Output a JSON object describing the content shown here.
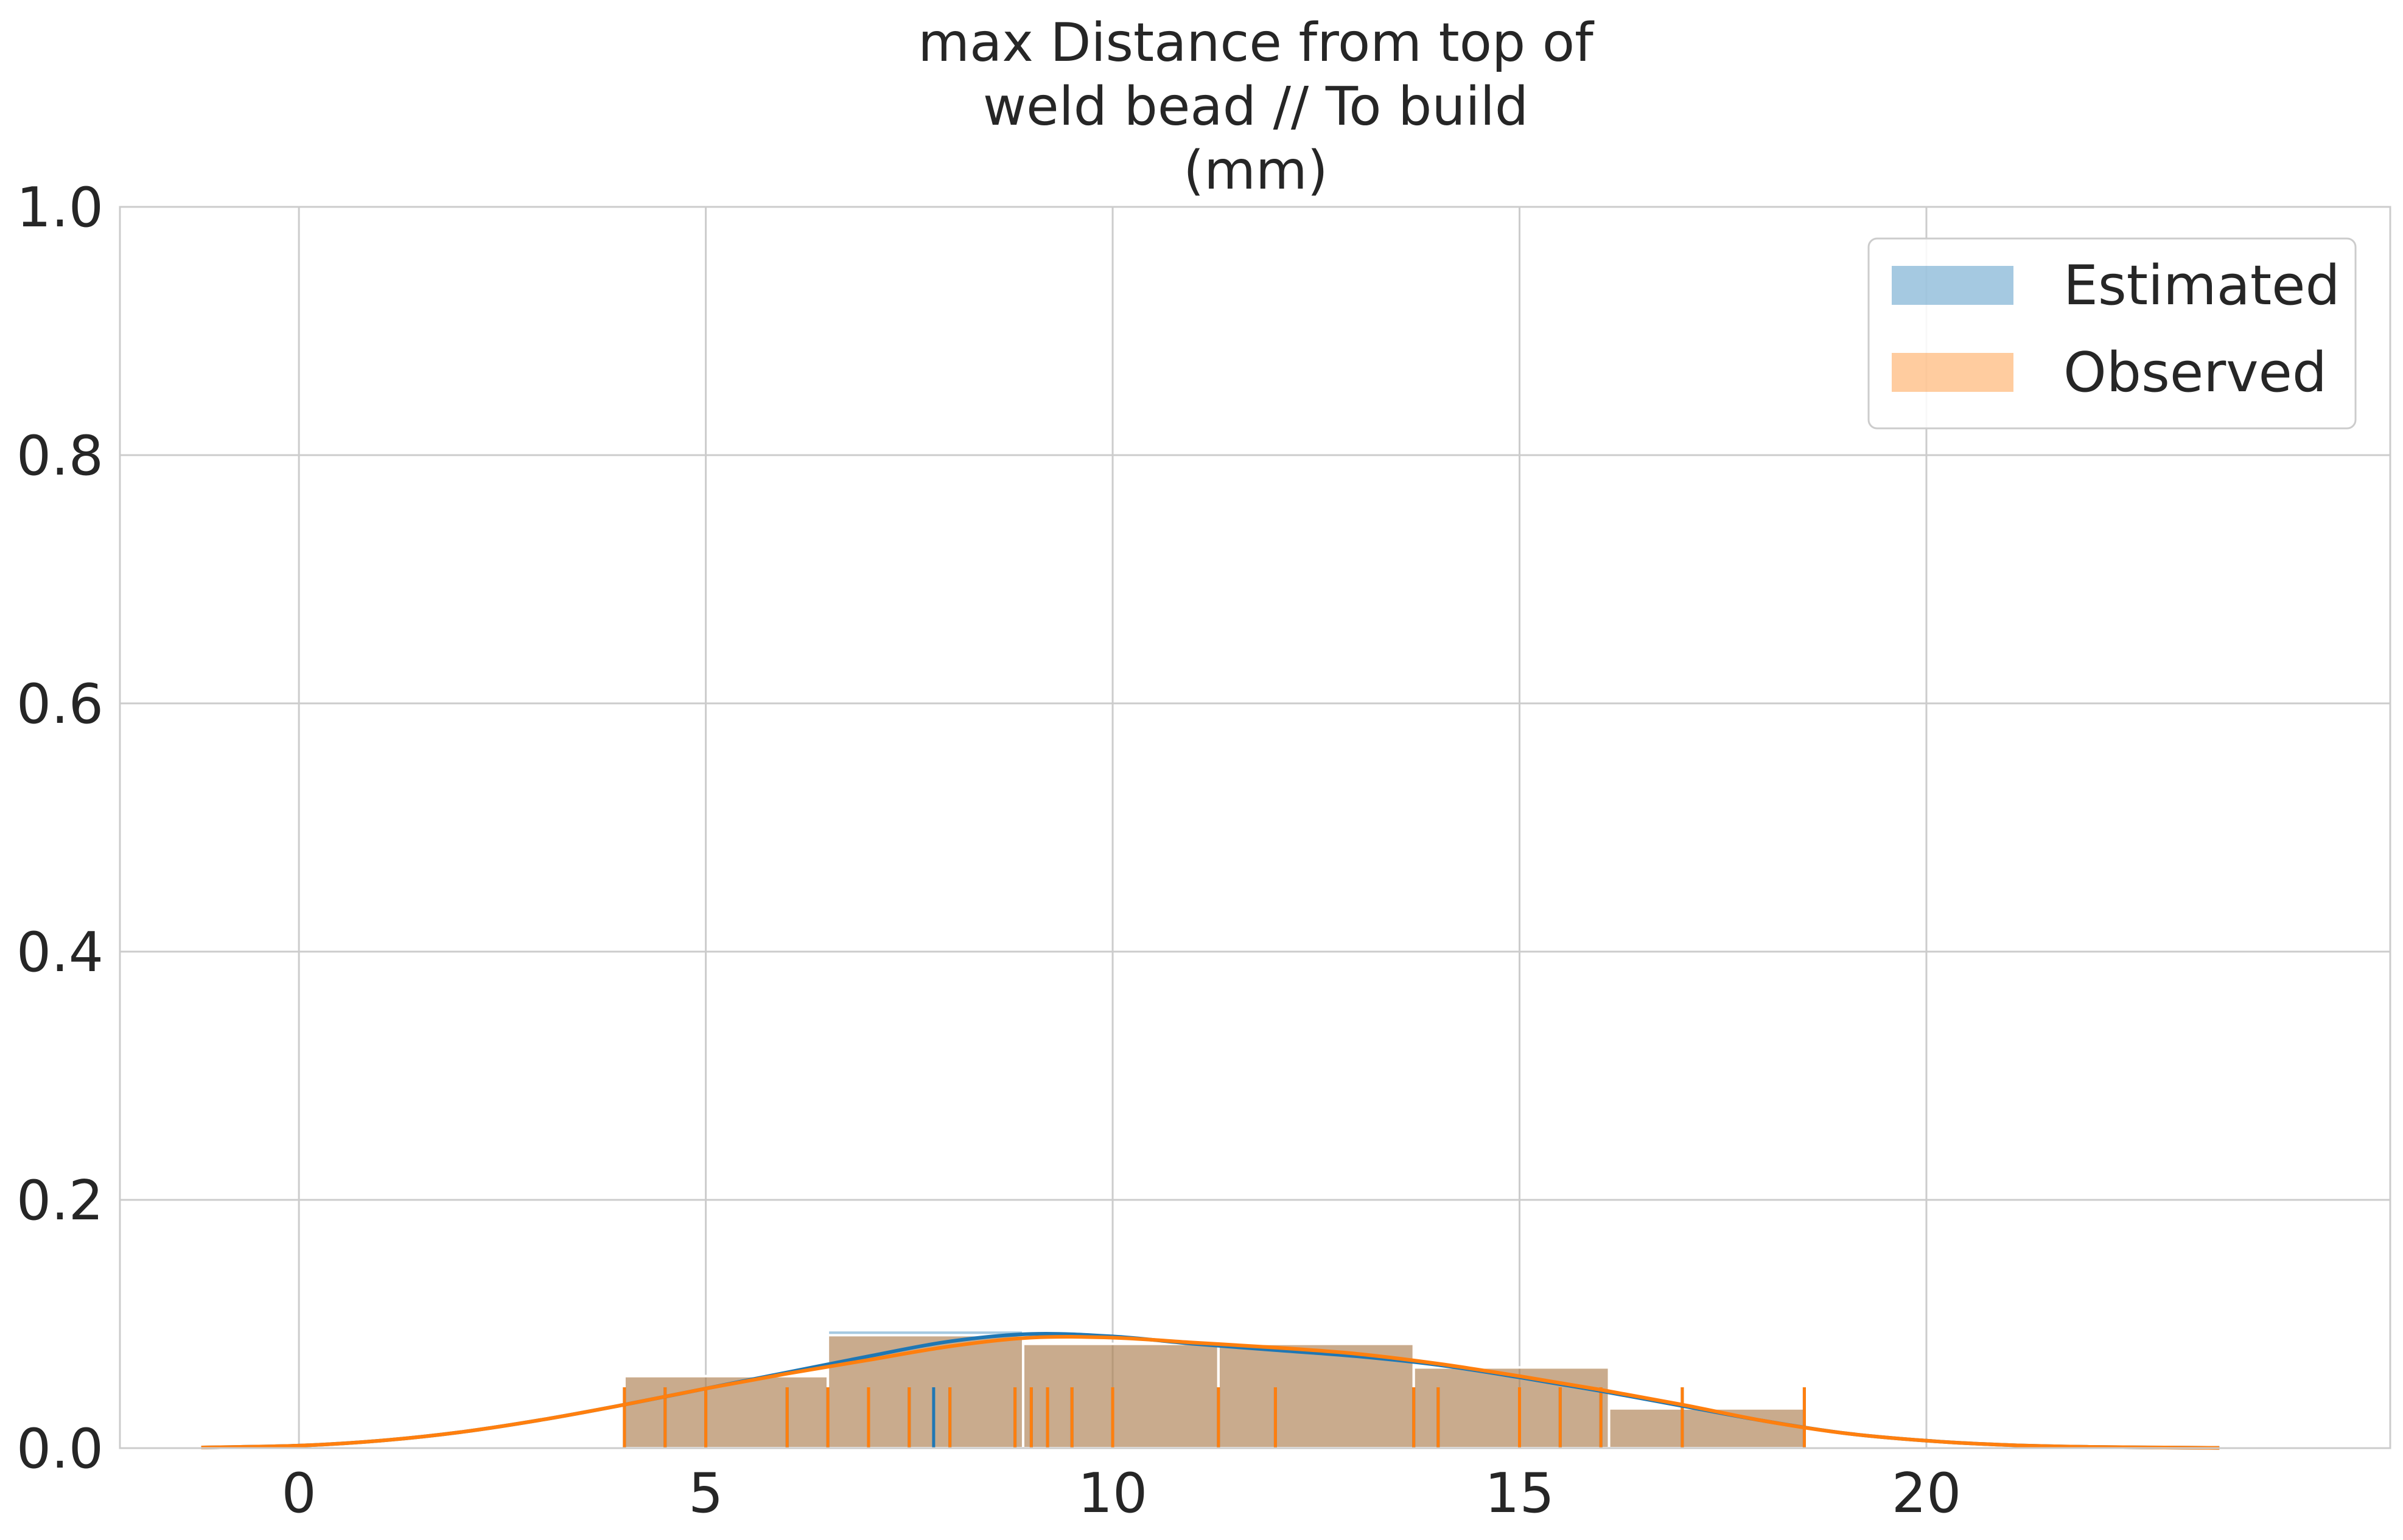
{
  "chart_data": {
    "type": "bar",
    "title_lines": [
      "max Distance from top of",
      "weld bead // To build",
      "(mm)"
    ],
    "xlabel": "",
    "ylabel": "",
    "xlim": [
      -2.2,
      25.7
    ],
    "ylim": [
      0,
      1.0
    ],
    "x_ticks": [
      0,
      5,
      10,
      15,
      20
    ],
    "y_ticks": [
      0.0,
      0.2,
      0.4,
      0.6,
      0.8,
      1.0
    ],
    "x_tick_labels": [
      "0",
      "5",
      "10",
      "15",
      "20"
    ],
    "y_tick_labels": [
      "0.0",
      "0.2",
      "0.4",
      "0.6",
      "0.8",
      "1.0"
    ],
    "grid": true,
    "legend_position": "top-right",
    "series": [
      {
        "name": "Estimated",
        "color": "#1f77b4",
        "bins": [
          [
            4.0,
            6.5,
            0.058
          ],
          [
            6.5,
            8.9,
            0.095
          ],
          [
            8.9,
            11.3,
            0.084
          ],
          [
            11.3,
            13.7,
            0.084
          ],
          [
            13.7,
            16.1,
            0.065
          ],
          [
            16.1,
            18.5,
            0.032
          ]
        ],
        "kde": [
          [
            -1.2,
            0.0005
          ],
          [
            0,
            0.002
          ],
          [
            1,
            0.006
          ],
          [
            2,
            0.013
          ],
          [
            3,
            0.023
          ],
          [
            4,
            0.035
          ],
          [
            5,
            0.048
          ],
          [
            6,
            0.061
          ],
          [
            7,
            0.074
          ],
          [
            8,
            0.086
          ],
          [
            9,
            0.092
          ],
          [
            10,
            0.09
          ],
          [
            11,
            0.084
          ],
          [
            12,
            0.079
          ],
          [
            13,
            0.074
          ],
          [
            14,
            0.067
          ],
          [
            15,
            0.057
          ],
          [
            16,
            0.046
          ],
          [
            17,
            0.034
          ],
          [
            18,
            0.022
          ],
          [
            19,
            0.012
          ],
          [
            20,
            0.006
          ],
          [
            21,
            0.0025
          ],
          [
            22,
            0.001
          ],
          [
            23.6,
            0.0002
          ]
        ],
        "rug": [
          4.0,
          4.5,
          5.0,
          6.0,
          6.5,
          7.0,
          7.5,
          7.8,
          8.0,
          8.8,
          9.0,
          9.2,
          9.5,
          10.0,
          11.3,
          12.0,
          13.7,
          14.0,
          15.0,
          15.5,
          16.0,
          17.0,
          18.5
        ]
      },
      {
        "name": "Observed",
        "color": "#ff7f0e",
        "bins": [
          [
            4.0,
            6.5,
            0.058
          ],
          [
            6.5,
            8.9,
            0.091
          ],
          [
            8.9,
            11.3,
            0.084
          ],
          [
            11.3,
            13.7,
            0.084
          ],
          [
            13.7,
            16.1,
            0.065
          ],
          [
            16.1,
            18.5,
            0.032
          ]
        ],
        "kde": [
          [
            -1.2,
            0.0005
          ],
          [
            0,
            0.002
          ],
          [
            1,
            0.006
          ],
          [
            2,
            0.013
          ],
          [
            3,
            0.023
          ],
          [
            4,
            0.035
          ],
          [
            5,
            0.048
          ],
          [
            6,
            0.06
          ],
          [
            7,
            0.071
          ],
          [
            8,
            0.082
          ],
          [
            9,
            0.089
          ],
          [
            10,
            0.089
          ],
          [
            11,
            0.085
          ],
          [
            12,
            0.081
          ],
          [
            13,
            0.076
          ],
          [
            14,
            0.068
          ],
          [
            15,
            0.058
          ],
          [
            16,
            0.047
          ],
          [
            17,
            0.035
          ],
          [
            18,
            0.022
          ],
          [
            19,
            0.012
          ],
          [
            20,
            0.006
          ],
          [
            21,
            0.0025
          ],
          [
            22,
            0.001
          ],
          [
            23.6,
            0.0002
          ]
        ],
        "rug": [
          4.0,
          4.5,
          5.0,
          6.0,
          6.5,
          7.0,
          7.5,
          8.0,
          8.8,
          9.0,
          9.2,
          9.5,
          10.0,
          11.3,
          12.0,
          13.7,
          14.0,
          15.0,
          15.5,
          16.0,
          17.0,
          18.5
        ]
      }
    ]
  }
}
